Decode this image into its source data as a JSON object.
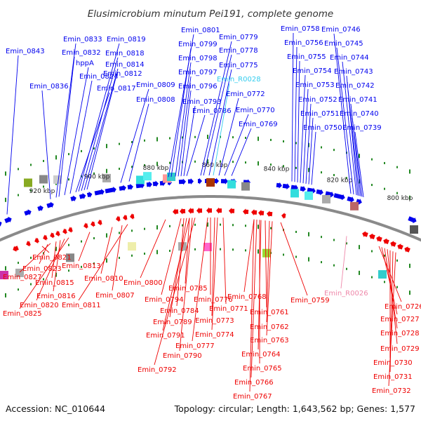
{
  "title": "Elusimicrobium minutum Pei191, complete genome",
  "footer": {
    "accession": "Accession: NC_010644",
    "stats": "Topology: circular; Length: 1,643,562 bp; Genes: 1,577"
  },
  "colors": {
    "forward": "#0000ee",
    "reverse": "#ee0000",
    "rna_forward": "#33ccee",
    "rna_reverse": "#ee88aa",
    "backbone": "#8a8a8a",
    "gc_tick": "#228822"
  },
  "scale_labels": [
    "920 kbp",
    "900 kbp",
    "880 kbp",
    "860 kbp",
    "840 kbp",
    "820 kbp",
    "800 kbp"
  ],
  "forward_labels": [
    "Emin_0843",
    "Emin_0836",
    "Emin_0833",
    "Emin_0832",
    "hppA",
    "Emin_0824",
    "Emin_0817",
    "Emin_0819",
    "Emin_0818",
    "Emin_0814",
    "Emin_0812",
    "Emin_0809",
    "Emin_0808",
    "Emin_0801",
    "Emin_0799",
    "Emin_0798",
    "Emin_0797",
    "Emin_0796",
    "Emin_0793",
    "Emin_0786",
    "Emin_0779",
    "Emin_0778",
    "Emin_0775",
    "Emin_R0028",
    "Emin_0772",
    "Emin_0770",
    "Emin_0769",
    "Emin_0758",
    "Emin_0756",
    "Emin_0755",
    "Emin_0754",
    "Emin_0753",
    "Emin_0752",
    "Emin_0751",
    "Emin_0750",
    "Emin_0746",
    "Emin_0745",
    "Emin_0744",
    "Emin_0743",
    "Emin_0742",
    "Emin_0741",
    "Emin_0740",
    "Emin_0739"
  ],
  "reverse_labels": [
    "Emin_0821",
    "Emin_0823",
    "Emin_0827",
    "Emin_0815",
    "Emin_0816",
    "Emin_0820",
    "Emin_0825",
    "Emin_0813",
    "Emin_0810",
    "Emin_0807",
    "Emin_0811",
    "Emin_0800",
    "Emin_0785",
    "Emin_0794",
    "Emin_0784",
    "Emin_0789",
    "Emin_0791",
    "Emin_0790",
    "Emin_0792",
    "Emin_0776",
    "Emin_0773",
    "Emin_0774",
    "Emin_0777",
    "Emin_0771",
    "Emin_0768",
    "Emin_0761",
    "Emin_0762",
    "Emin_0763",
    "Emin_0764",
    "Emin_0765",
    "Emin_0766",
    "Emin_0767",
    "Emin_0759",
    "Emin_R0026",
    "Emin_0726",
    "Emin_0727",
    "Emin_0728",
    "Emin_0729",
    "Emin_0730",
    "Emin_0731",
    "Emin_0732"
  ]
}
